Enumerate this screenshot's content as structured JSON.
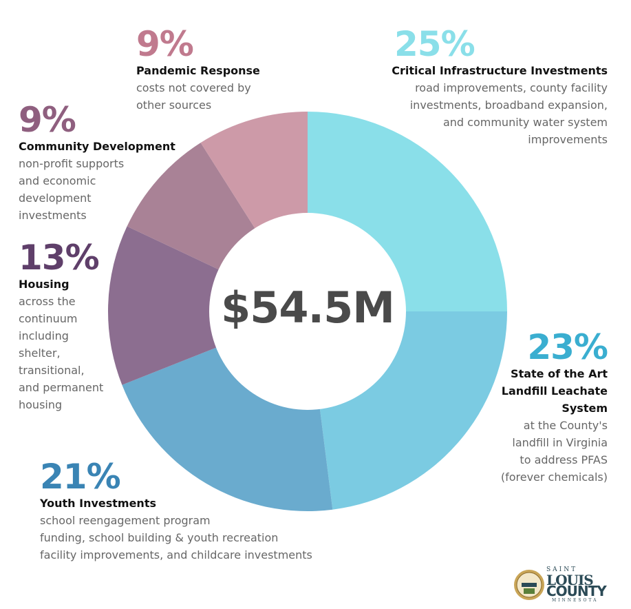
{
  "chart_data": {
    "type": "pie",
    "center_label": "$54.5M",
    "slices": [
      {
        "value": 25,
        "pct_label": "25%",
        "label": "Critical Infrastructure Investments",
        "description": [
          "road improvements, county facility",
          "investments, broadband expansion,",
          "and community water system",
          "improvements"
        ],
        "color": "#8adfe9",
        "text_color": "#8adfe9"
      },
      {
        "value": 23,
        "pct_label": "23%",
        "label": [
          "State of the Art",
          "Landfill Leachate",
          "System"
        ],
        "description": [
          "at the County's",
          "landfill in Virginia",
          "to address PFAS",
          "(forever chemicals)"
        ],
        "color": "#7bcbe2",
        "text_color": "#3aaed0"
      },
      {
        "value": 21,
        "pct_label": "21%",
        "label": "Youth Investments",
        "description": [
          "school reengagement program",
          "funding, school building & youth recreation",
          "facility improvements, and childcare investments"
        ],
        "color": "#6aabce",
        "text_color": "#3a84b4"
      },
      {
        "value": 13,
        "pct_label": "13%",
        "label": "Housing",
        "description": [
          "across the",
          "continuum",
          "including",
          "shelter,",
          "transitional,",
          "and permanent",
          "housing"
        ],
        "color": "#8c6e90",
        "text_color": "#5f3f6a"
      },
      {
        "value": 9,
        "pct_label": "9%",
        "label": "Community Development",
        "description": [
          "non-profit supports",
          "and economic",
          "development",
          "investments"
        ],
        "color": "#a98296",
        "text_color": "#8f5f7f"
      },
      {
        "value": 9,
        "pct_label": "9%",
        "label": "Pandemic Response",
        "description": [
          "costs not covered by",
          "other sources"
        ],
        "color": "#cd9aa8",
        "text_color": "#c07a8e"
      }
    ]
  },
  "logo": {
    "saint": "SAINT",
    "louis": "LOUIS",
    "county": "COUNTY",
    "state": "MINNESOTA",
    "seal_text": "SAINT LOUIS"
  }
}
